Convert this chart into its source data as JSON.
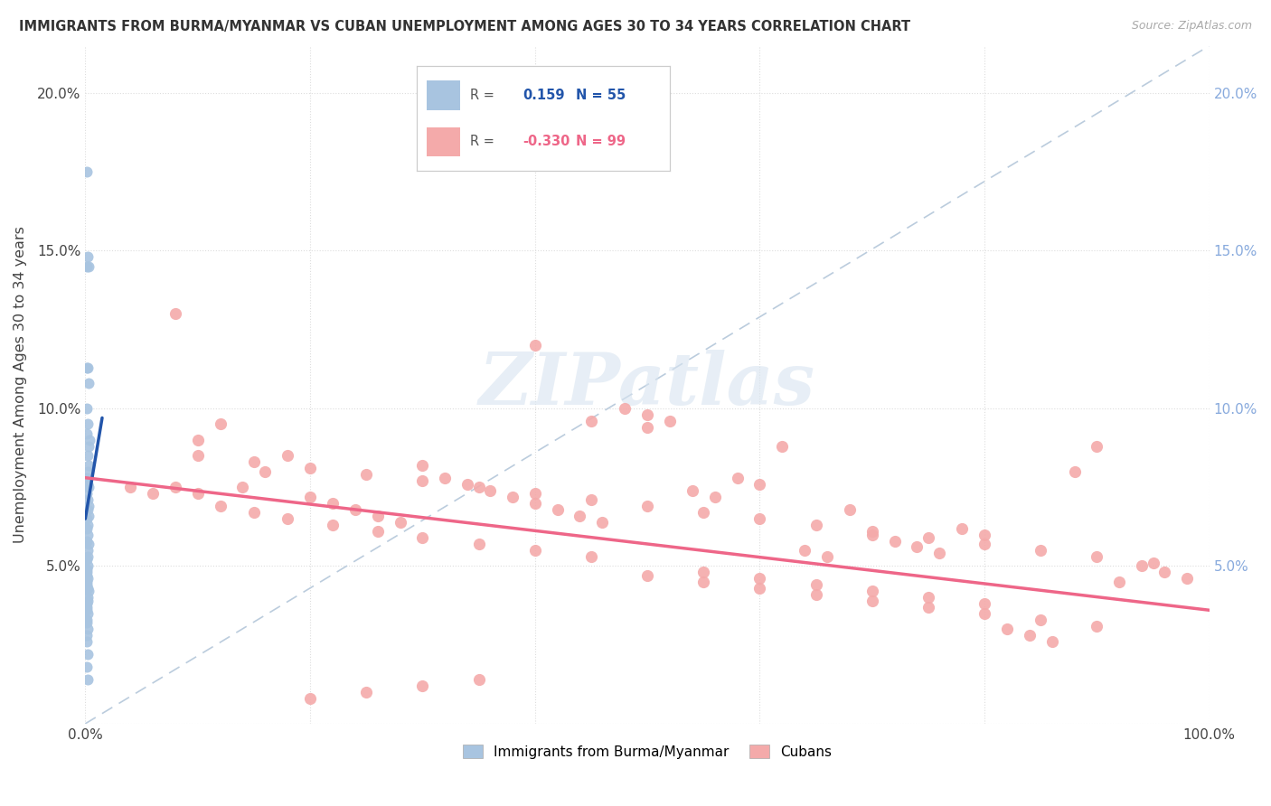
{
  "title": "IMMIGRANTS FROM BURMA/MYANMAR VS CUBAN UNEMPLOYMENT AMONG AGES 30 TO 34 YEARS CORRELATION CHART",
  "source": "Source: ZipAtlas.com",
  "ylabel": "Unemployment Among Ages 30 to 34 years",
  "xlim": [
    0,
    1.0
  ],
  "ylim": [
    0,
    0.215
  ],
  "blue_color": "#A8C4E0",
  "pink_color": "#F4AAAA",
  "blue_line_color": "#2255AA",
  "pink_line_color": "#EE6688",
  "dashed_line_color": "#BBCCDD",
  "right_tick_color": "#88AADD",
  "legend_blue_r": "0.159",
  "legend_blue_n": "55",
  "legend_pink_r": "-0.330",
  "legend_pink_n": "99",
  "watermark_text": "ZIPatlas",
  "blue_scatter_x": [
    0.001,
    0.002,
    0.001,
    0.003,
    0.001,
    0.002,
    0.003,
    0.001,
    0.002,
    0.001,
    0.004,
    0.003,
    0.002,
    0.003,
    0.002,
    0.001,
    0.002,
    0.003,
    0.001,
    0.002,
    0.003,
    0.002,
    0.003,
    0.001,
    0.002,
    0.001,
    0.002,
    0.001,
    0.003,
    0.002,
    0.002,
    0.001,
    0.002,
    0.001,
    0.001,
    0.001,
    0.002,
    0.001,
    0.001,
    0.002,
    0.003,
    0.002,
    0.002,
    0.001,
    0.001,
    0.001,
    0.002,
    0.001,
    0.001,
    0.002,
    0.001,
    0.001,
    0.002,
    0.001,
    0.002
  ],
  "blue_scatter_y": [
    0.175,
    0.148,
    0.145,
    0.145,
    0.113,
    0.113,
    0.108,
    0.1,
    0.095,
    0.092,
    0.09,
    0.088,
    0.085,
    0.082,
    0.08,
    0.078,
    0.076,
    0.075,
    0.073,
    0.071,
    0.069,
    0.068,
    0.066,
    0.065,
    0.063,
    0.062,
    0.06,
    0.058,
    0.057,
    0.055,
    0.053,
    0.052,
    0.05,
    0.049,
    0.048,
    0.047,
    0.046,
    0.045,
    0.044,
    0.043,
    0.042,
    0.04,
    0.039,
    0.038,
    0.037,
    0.036,
    0.035,
    0.033,
    0.032,
    0.03,
    0.028,
    0.026,
    0.022,
    0.018,
    0.014
  ],
  "pink_scatter_x": [
    0.04,
    0.06,
    0.08,
    0.1,
    0.12,
    0.14,
    0.16,
    0.18,
    0.2,
    0.22,
    0.24,
    0.26,
    0.28,
    0.3,
    0.32,
    0.34,
    0.36,
    0.38,
    0.4,
    0.42,
    0.44,
    0.46,
    0.48,
    0.5,
    0.52,
    0.54,
    0.56,
    0.58,
    0.6,
    0.62,
    0.64,
    0.66,
    0.68,
    0.7,
    0.72,
    0.74,
    0.76,
    0.78,
    0.8,
    0.82,
    0.84,
    0.86,
    0.88,
    0.9,
    0.92,
    0.94,
    0.96,
    0.98,
    0.08,
    0.1,
    0.12,
    0.15,
    0.18,
    0.22,
    0.26,
    0.3,
    0.35,
    0.4,
    0.45,
    0.5,
    0.55,
    0.6,
    0.65,
    0.7,
    0.75,
    0.8,
    0.85,
    0.9,
    0.1,
    0.15,
    0.2,
    0.25,
    0.3,
    0.35,
    0.4,
    0.45,
    0.5,
    0.55,
    0.6,
    0.65,
    0.7,
    0.75,
    0.8,
    0.85,
    0.9,
    0.95,
    0.2,
    0.25,
    0.3,
    0.35,
    0.4,
    0.45,
    0.5,
    0.55,
    0.6,
    0.65,
    0.7,
    0.75,
    0.8
  ],
  "pink_scatter_y": [
    0.075,
    0.073,
    0.13,
    0.09,
    0.095,
    0.075,
    0.08,
    0.085,
    0.072,
    0.07,
    0.068,
    0.066,
    0.064,
    0.082,
    0.078,
    0.076,
    0.074,
    0.072,
    0.07,
    0.068,
    0.066,
    0.064,
    0.1,
    0.098,
    0.096,
    0.074,
    0.072,
    0.078,
    0.076,
    0.088,
    0.055,
    0.053,
    0.068,
    0.06,
    0.058,
    0.056,
    0.054,
    0.062,
    0.06,
    0.03,
    0.028,
    0.026,
    0.08,
    0.088,
    0.045,
    0.05,
    0.048,
    0.046,
    0.075,
    0.073,
    0.069,
    0.067,
    0.065,
    0.063,
    0.061,
    0.059,
    0.057,
    0.055,
    0.053,
    0.047,
    0.045,
    0.043,
    0.041,
    0.039,
    0.037,
    0.035,
    0.033,
    0.031,
    0.085,
    0.083,
    0.081,
    0.079,
    0.077,
    0.075,
    0.073,
    0.071,
    0.069,
    0.067,
    0.065,
    0.063,
    0.061,
    0.059,
    0.057,
    0.055,
    0.053,
    0.051,
    0.008,
    0.01,
    0.012,
    0.014,
    0.12,
    0.096,
    0.094,
    0.048,
    0.046,
    0.044,
    0.042,
    0.04,
    0.038
  ],
  "blue_line_x": [
    0.0,
    0.015
  ],
  "blue_line_y_start": 0.065,
  "blue_line_y_end": 0.097,
  "pink_line_x": [
    0.0,
    1.0
  ],
  "pink_line_y_start": 0.078,
  "pink_line_y_end": 0.036
}
